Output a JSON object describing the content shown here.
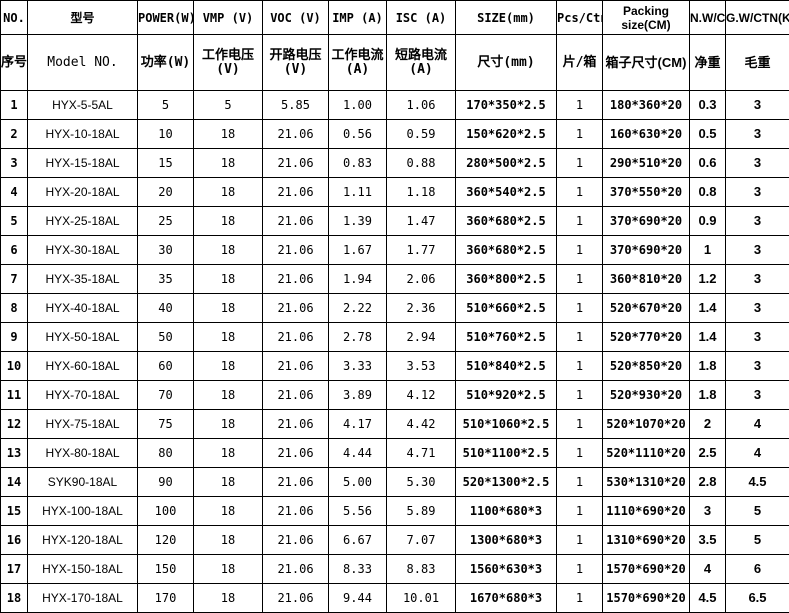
{
  "header1": [
    "NO.",
    "型号",
    "POWER(W)",
    "VMP (V)",
    "VOC (V)",
    "IMP (A)",
    "ISC (A)",
    "SIZE(mm)",
    "Pcs/Ctn",
    "Packing size(CM)",
    "N.W/CTN(",
    "G.W/CTN(KGS)"
  ],
  "header2": [
    "序号",
    "Model NO.",
    "功率(W)",
    "工作电压(V)",
    "开路电压(V)",
    "工作电流(A)",
    "短路电流(A)",
    "尺寸(mm)",
    "片/箱",
    "箱子尺寸(CM)",
    "净重",
    "毛重"
  ],
  "rows": [
    [
      "1",
      "HYX-5-5AL",
      "5",
      "5",
      "5.85",
      "1.00",
      "1.06",
      "170*350*2.5",
      "1",
      "180*360*20",
      "0.3",
      "3"
    ],
    [
      "2",
      "HYX-10-18AL",
      "10",
      "18",
      "21.06",
      "0.56",
      "0.59",
      "150*620*2.5",
      "1",
      "160*630*20",
      "0.5",
      "3"
    ],
    [
      "3",
      "HYX-15-18AL",
      "15",
      "18",
      "21.06",
      "0.83",
      "0.88",
      "280*500*2.5",
      "1",
      "290*510*20",
      "0.6",
      "3"
    ],
    [
      "4",
      "HYX-20-18AL",
      "20",
      "18",
      "21.06",
      "1.11",
      "1.18",
      "360*540*2.5",
      "1",
      "370*550*20",
      "0.8",
      "3"
    ],
    [
      "5",
      "HYX-25-18AL",
      "25",
      "18",
      "21.06",
      "1.39",
      "1.47",
      "360*680*2.5",
      "1",
      "370*690*20",
      "0.9",
      "3"
    ],
    [
      "6",
      "HYX-30-18AL",
      "30",
      "18",
      "21.06",
      "1.67",
      "1.77",
      "360*680*2.5",
      "1",
      "370*690*20",
      "1",
      "3"
    ],
    [
      "7",
      "HYX-35-18AL",
      "35",
      "18",
      "21.06",
      "1.94",
      "2.06",
      "360*800*2.5",
      "1",
      "360*810*20",
      "1.2",
      "3"
    ],
    [
      "8",
      "HYX-40-18AL",
      "40",
      "18",
      "21.06",
      "2.22",
      "2.36",
      "510*660*2.5",
      "1",
      "520*670*20",
      "1.4",
      "3"
    ],
    [
      "9",
      "HYX-50-18AL",
      "50",
      "18",
      "21.06",
      "2.78",
      "2.94",
      "510*760*2.5",
      "1",
      "520*770*20",
      "1.4",
      "3"
    ],
    [
      "10",
      "HYX-60-18AL",
      "60",
      "18",
      "21.06",
      "3.33",
      "3.53",
      "510*840*2.5",
      "1",
      "520*850*20",
      "1.8",
      "3"
    ],
    [
      "11",
      "HYX-70-18AL",
      "70",
      "18",
      "21.06",
      "3.89",
      "4.12",
      "510*920*2.5",
      "1",
      "520*930*20",
      "1.8",
      "3"
    ],
    [
      "12",
      "HYX-75-18AL",
      "75",
      "18",
      "21.06",
      "4.17",
      "4.42",
      "510*1060*2.5",
      "1",
      "520*1070*20",
      "2",
      "4"
    ],
    [
      "13",
      "HYX-80-18AL",
      "80",
      "18",
      "21.06",
      "4.44",
      "4.71",
      "510*1100*2.5",
      "1",
      "520*1110*20",
      "2.5",
      "4"
    ],
    [
      "14",
      "SYK90-18AL",
      "90",
      "18",
      "21.06",
      "5.00",
      "5.30",
      "520*1300*2.5",
      "1",
      "530*1310*20",
      "2.8",
      "4.5"
    ],
    [
      "15",
      "HYX-100-18AL",
      "100",
      "18",
      "21.06",
      "5.56",
      "5.89",
      "1100*680*3",
      "1",
      "1110*690*20",
      "3",
      "5"
    ],
    [
      "16",
      "HYX-120-18AL",
      "120",
      "18",
      "21.06",
      "6.67",
      "7.07",
      "1300*680*3",
      "1",
      "1310*690*20",
      "3.5",
      "5"
    ],
    [
      "17",
      "HYX-150-18AL",
      "150",
      "18",
      "21.06",
      "8.33",
      "8.83",
      "1560*630*3",
      "1",
      "1570*690*20",
      "4",
      "6"
    ],
    [
      "18",
      "HYX-170-18AL",
      "170",
      "18",
      "21.06",
      "9.44",
      "10.01",
      "1670*680*3",
      "1",
      "1570*690*20",
      "4.5",
      "6.5"
    ]
  ]
}
